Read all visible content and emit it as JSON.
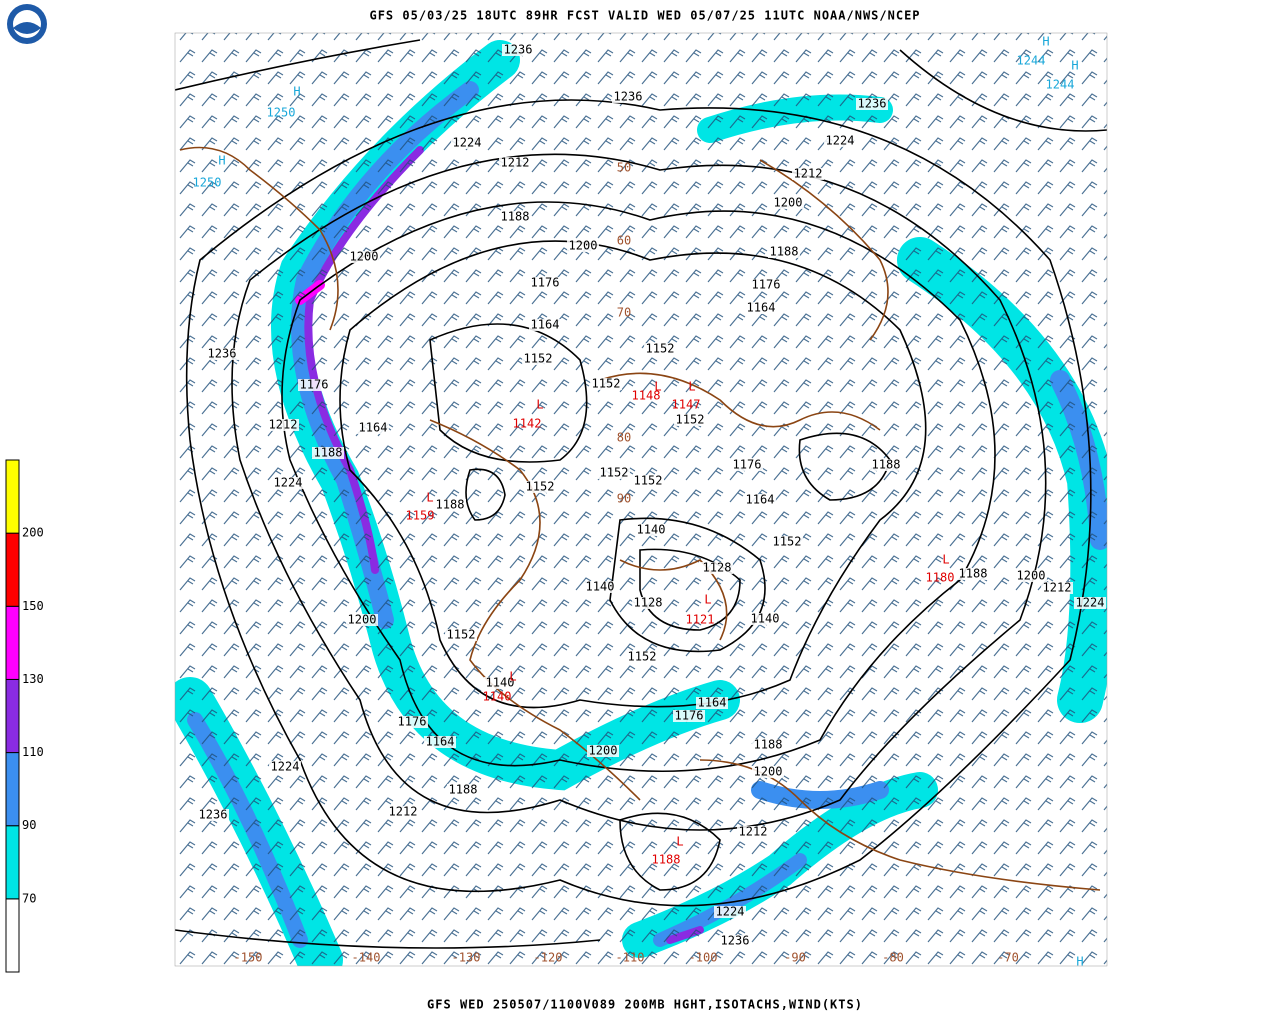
{
  "header": {
    "title": "GFS 05/03/25 18UTC 89HR FCST VALID WED 05/07/25 11UTC NOAA/NWS/NCEP"
  },
  "footer": {
    "caption": "GFS WED 250507/1100V089 200MB HGHT,ISOTACHS,WIND(KTS)"
  },
  "colorbar": {
    "levels": [
      70,
      90,
      110,
      130,
      150,
      200
    ],
    "colors": [
      "#ffffff",
      "#00e5e5",
      "#3b8ff0",
      "#8a2be2",
      "#ff00ff",
      "#ff0000",
      "#ffff00"
    ]
  },
  "map": {
    "height_labels": [
      1236,
      1236,
      1236,
      1224,
      1224,
      1212,
      1212,
      1200,
      1200,
      1188,
      1188,
      1176,
      1176,
      1164,
      1164,
      1152,
      1152,
      1152,
      1152,
      1200,
      1236,
      1176,
      1212,
      1164,
      1188,
      1224,
      1188,
      1152,
      1152,
      1152,
      1176,
      1188,
      1164,
      1140,
      1152,
      1128,
      1140,
      1128,
      1140,
      1152,
      1152,
      1140,
      1200,
      1188,
      1200,
      1212,
      1224,
      1176,
      1164,
      1164,
      1176,
      1188,
      1200,
      1200,
      1224,
      1188,
      1212,
      1212,
      1236,
      1224,
      1236
    ],
    "lows": [
      {
        "letter": "L",
        "value": 1142
      },
      {
        "letter": "L",
        "value": 1148
      },
      {
        "letter": "L",
        "value": 1147
      },
      {
        "letter": "L",
        "value": 1159
      },
      {
        "letter": "L",
        "value": 1121
      },
      {
        "letter": "L",
        "value": 1140
      },
      {
        "letter": "L",
        "value": 1188
      },
      {
        "letter": "L",
        "value": 1180
      }
    ],
    "highs": [
      {
        "letter": "H",
        "value": 1250
      },
      {
        "letter": "H",
        "value": 1250
      },
      {
        "letter": "H",
        "value": 1244
      },
      {
        "letter": "H",
        "value": 1244
      },
      {
        "letter": "H",
        "value": null
      }
    ],
    "lon_labels": [
      -150,
      -140,
      -130,
      -120,
      -110,
      -100,
      -90,
      -80,
      -70
    ],
    "lat_labels": [
      90,
      80,
      70,
      60,
      50
    ]
  }
}
